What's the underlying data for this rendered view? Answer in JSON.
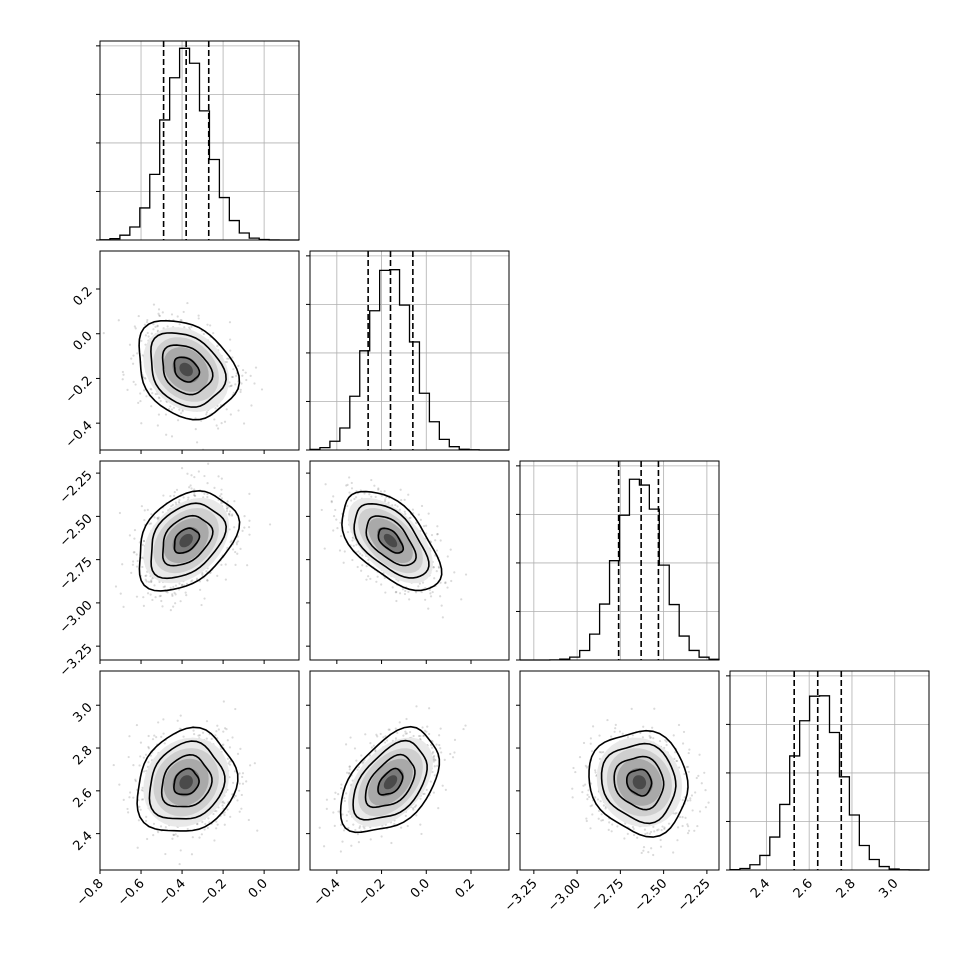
{
  "chart_data": {
    "type": "corner",
    "title": "",
    "n_params": 4,
    "parameters": [
      {
        "label": "",
        "mean": -0.38,
        "sd": 0.11,
        "quantiles": [
          -0.49,
          -0.38,
          -0.27
        ],
        "range": [
          -0.8,
          0.17
        ],
        "ticks": [
          -0.8,
          -0.6,
          -0.4,
          -0.2,
          0.0
        ],
        "tick_labels": [
          "−0.8",
          "−0.6",
          "−0.4",
          "−0.2",
          "0.0"
        ]
      },
      {
        "label": "",
        "mean": -0.16,
        "sd": 0.1,
        "quantiles": [
          -0.26,
          -0.16,
          -0.06
        ],
        "range": [
          -0.52,
          0.37
        ],
        "ticks": [
          -0.4,
          -0.2,
          0.0,
          0.2
        ],
        "tick_labels": [
          "−0.4",
          "−0.2",
          "0.0",
          "0.2"
        ]
      },
      {
        "label": "",
        "mean": -2.64,
        "sd": 0.13,
        "quantiles": [
          -2.76,
          -2.63,
          -2.53
        ],
        "range": [
          -3.33,
          -2.18
        ],
        "ticks": [
          -3.25,
          -3.0,
          -2.75,
          -2.5,
          -2.25
        ],
        "tick_labels": [
          "−3.25",
          "−3.00",
          "−2.75",
          "−2.50",
          "−2.25"
        ]
      },
      {
        "label": "",
        "mean": 2.64,
        "sd": 0.11,
        "quantiles": [
          2.53,
          2.64,
          2.75
        ],
        "range": [
          2.23,
          3.16
        ],
        "ticks": [
          2.4,
          2.6,
          2.8,
          3.0
        ],
        "tick_labels": [
          "2.4",
          "2.6",
          "2.8",
          "3.0"
        ]
      }
    ],
    "correlations": [
      [
        0,
        1,
        -0.25
      ],
      [
        0,
        2,
        0.35
      ],
      [
        0,
        3,
        0.15
      ],
      [
        1,
        2,
        -0.55
      ],
      [
        1,
        3,
        0.45
      ],
      [
        2,
        3,
        -0.1
      ]
    ],
    "histogram_bins": 20,
    "contour_levels_sigma": [
      0.5,
      1.0,
      1.5,
      2.0
    ],
    "grid": true,
    "quantile_lines": "dashed"
  }
}
